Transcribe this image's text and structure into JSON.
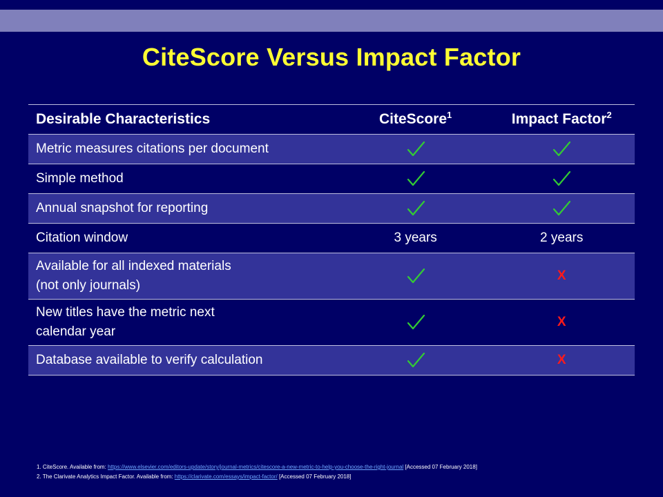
{
  "slide": {
    "title": "CiteScore Versus Impact Factor"
  },
  "table": {
    "headers": {
      "characteristics": "Desirable Characteristics",
      "citescore": "CiteScore",
      "citescore_sup": "1",
      "impact_factor": "Impact Factor",
      "impact_factor_sup": "2"
    },
    "rows": [
      {
        "label": "Metric measures citations per document",
        "label2": "",
        "citescore": "check",
        "impact_factor": "check"
      },
      {
        "label": "Simple method",
        "label2": "",
        "citescore": "check",
        "impact_factor": "check"
      },
      {
        "label": "Annual snapshot for reporting",
        "label2": "",
        "citescore": "check",
        "impact_factor": "check"
      },
      {
        "label": "Citation window",
        "label2": "",
        "citescore_text": "3 years",
        "impact_factor_text": "2 years"
      },
      {
        "label": "Available for all indexed materials",
        "label2": "(not only journals)",
        "citescore": "check",
        "impact_factor_text": "X"
      },
      {
        "label": "New titles have the metric next",
        "label2": "calendar year",
        "citescore": "check",
        "impact_factor_text": "X"
      },
      {
        "label": "Database available to verify calculation",
        "label2": "",
        "citescore": "check",
        "impact_factor_text": "X"
      }
    ]
  },
  "colors": {
    "background": "#000066",
    "title": "#ffff33",
    "band": "#8080bb",
    "row_alt": "#333399",
    "check": "#33cc33",
    "cross": "#ff1a1a"
  },
  "footnotes": [
    {
      "prefix": "1. CiteScore. Available from: ",
      "link": "https://www.elsevier.com/editors-update/story/journal-metrics/citescore-a-new-metric-to-help-you-choose-the-right-journal",
      "suffix": " [Accessed 07 February 2018]"
    },
    {
      "prefix": "2. The Clarivate Analytics Impact Factor. Available from: ",
      "link": "https://clarivate.com/essays/impact-factor/",
      "suffix": " [Accessed 07 February 2018]"
    }
  ]
}
